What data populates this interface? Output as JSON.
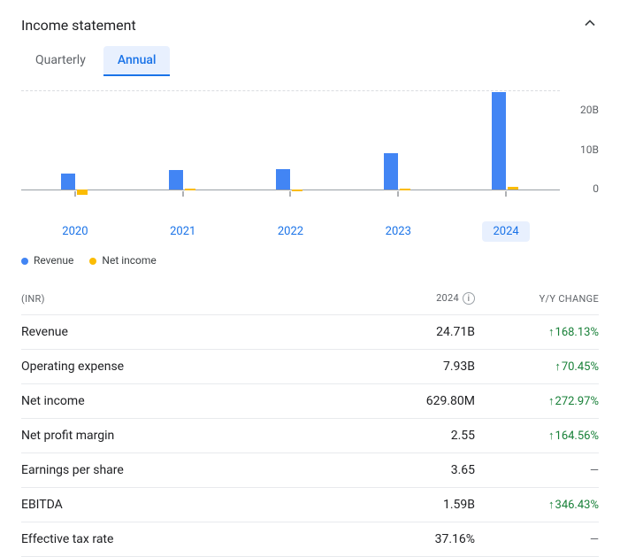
{
  "header": {
    "title": "Income statement"
  },
  "tabs": {
    "quarterly": "Quarterly",
    "annual": "Annual",
    "active": "annual"
  },
  "chart": {
    "type": "bar",
    "ymax": 25,
    "ymin": -2,
    "yticks": [
      {
        "v": 20,
        "label": "20B"
      },
      {
        "v": 10,
        "label": "10B"
      },
      {
        "v": 0,
        "label": "0"
      }
    ],
    "revenue_color": "#4285f4",
    "netincome_color": "#fbbc04",
    "axis_color": "#9aa0a6",
    "grid_color": "#dadce0",
    "categories": [
      {
        "label": "2020",
        "revenue": 4.0,
        "netincome": -1.4,
        "selected": false
      },
      {
        "label": "2021",
        "revenue": 5.0,
        "netincome": 0.3,
        "selected": false
      },
      {
        "label": "2022",
        "revenue": 5.2,
        "netincome": -0.5,
        "selected": false
      },
      {
        "label": "2023",
        "revenue": 9.2,
        "netincome": 0.17,
        "selected": false
      },
      {
        "label": "2024",
        "revenue": 24.7,
        "netincome": 0.63,
        "selected": true
      }
    ]
  },
  "legend": {
    "revenue": "Revenue",
    "netincome": "Net income"
  },
  "table": {
    "currency_header": "(INR)",
    "value_header": "2024",
    "change_header": "Y/Y CHANGE",
    "rows": [
      {
        "label": "Revenue",
        "value": "24.71B",
        "change": "168.13%",
        "dir": "up"
      },
      {
        "label": "Operating expense",
        "value": "7.93B",
        "change": "70.45%",
        "dir": "up"
      },
      {
        "label": "Net income",
        "value": "629.80M",
        "change": "272.97%",
        "dir": "up"
      },
      {
        "label": "Net profit margin",
        "value": "2.55",
        "change": "164.56%",
        "dir": "up"
      },
      {
        "label": "Earnings per share",
        "value": "3.65",
        "change": "—",
        "dir": "none"
      },
      {
        "label": "EBITDA",
        "value": "1.59B",
        "change": "346.43%",
        "dir": "up"
      },
      {
        "label": "Effective tax rate",
        "value": "37.16%",
        "change": "—",
        "dir": "none"
      }
    ]
  }
}
